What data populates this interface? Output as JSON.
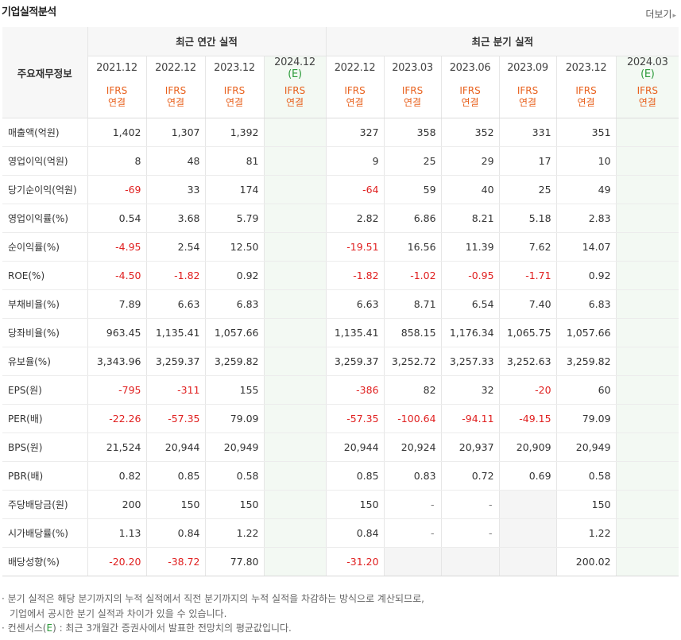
{
  "title": "기업실적분석",
  "more_label": "더보기",
  "more_arrow": "▸",
  "header": {
    "row_label": "주요재무정보",
    "annual_group": "최근 연간 실적",
    "quarter_group": "최근 분기 실적",
    "periods": [
      {
        "top": "2021.12",
        "bottom": ""
      },
      {
        "top": "2022.12",
        "bottom": ""
      },
      {
        "top": "2023.12",
        "bottom": ""
      },
      {
        "top": "2024.12",
        "bottom": "(E)"
      },
      {
        "top": "2022.12",
        "bottom": ""
      },
      {
        "top": "2023.03",
        "bottom": ""
      },
      {
        "top": "2023.06",
        "bottom": ""
      },
      {
        "top": "2023.09",
        "bottom": ""
      },
      {
        "top": "2023.12",
        "bottom": ""
      },
      {
        "top": "2024.03",
        "bottom": "(E)"
      }
    ],
    "basis_line1": "IFRS",
    "basis_line2": "연결"
  },
  "rows": [
    {
      "label": "매출액(억원)",
      "values": [
        "1,402",
        "1,307",
        "1,392",
        "",
        "327",
        "358",
        "352",
        "331",
        "351",
        ""
      ]
    },
    {
      "label": "영업이익(억원)",
      "values": [
        "8",
        "48",
        "81",
        "",
        "9",
        "25",
        "29",
        "17",
        "10",
        ""
      ]
    },
    {
      "label": "당기순이익(억원)",
      "values": [
        "-69",
        "33",
        "174",
        "",
        "-64",
        "59",
        "40",
        "25",
        "49",
        ""
      ]
    },
    {
      "label": "영업이익률(%)",
      "values": [
        "0.54",
        "3.68",
        "5.79",
        "",
        "2.82",
        "6.86",
        "8.21",
        "5.18",
        "2.83",
        ""
      ]
    },
    {
      "label": "순이익률(%)",
      "values": [
        "-4.95",
        "2.54",
        "12.50",
        "",
        "-19.51",
        "16.56",
        "11.39",
        "7.62",
        "14.07",
        ""
      ]
    },
    {
      "label": "ROE(%)",
      "values": [
        "-4.50",
        "-1.82",
        "0.92",
        "",
        "-1.82",
        "-1.02",
        "-0.95",
        "-1.71",
        "0.92",
        ""
      ]
    },
    {
      "label": "부채비율(%)",
      "values": [
        "7.89",
        "6.63",
        "6.83",
        "",
        "6.63",
        "8.71",
        "6.54",
        "7.40",
        "6.83",
        ""
      ]
    },
    {
      "label": "당좌비율(%)",
      "values": [
        "963.45",
        "1,135.41",
        "1,057.66",
        "",
        "1,135.41",
        "858.15",
        "1,176.34",
        "1,065.75",
        "1,057.66",
        ""
      ]
    },
    {
      "label": "유보율(%)",
      "values": [
        "3,343.96",
        "3,259.37",
        "3,259.82",
        "",
        "3,259.37",
        "3,252.72",
        "3,257.33",
        "3,252.63",
        "3,259.82",
        ""
      ]
    },
    {
      "label": "EPS(원)",
      "values": [
        "-795",
        "-311",
        "155",
        "",
        "-386",
        "82",
        "32",
        "-20",
        "60",
        ""
      ]
    },
    {
      "label": "PER(배)",
      "values": [
        "-22.26",
        "-57.35",
        "79.09",
        "",
        "-57.35",
        "-100.64",
        "-94.11",
        "-49.15",
        "79.09",
        ""
      ]
    },
    {
      "label": "BPS(원)",
      "values": [
        "21,524",
        "20,944",
        "20,949",
        "",
        "20,944",
        "20,924",
        "20,937",
        "20,909",
        "20,949",
        ""
      ]
    },
    {
      "label": "PBR(배)",
      "values": [
        "0.82",
        "0.85",
        "0.58",
        "",
        "0.85",
        "0.83",
        "0.72",
        "0.69",
        "0.58",
        ""
      ]
    },
    {
      "label": "주당배당금(원)",
      "values": [
        "200",
        "150",
        "150",
        "",
        "150",
        "-",
        "-",
        "",
        "150",
        ""
      ]
    },
    {
      "label": "시가배당률(%)",
      "values": [
        "1.13",
        "0.84",
        "1.22",
        "",
        "0.84",
        "-",
        "-",
        "",
        "1.22",
        ""
      ]
    },
    {
      "label": "배당성향(%)",
      "values": [
        "-20.20",
        "-38.72",
        "77.80",
        "",
        "-31.20",
        "",
        "",
        "",
        "200.02",
        ""
      ]
    }
  ],
  "notes": {
    "line1": "· 분기 실적은 해당 분기까지의 누적 실적에서 직전 분기까지의 누적 실적을 차감하는 방식으로 계산되므로,",
    "line2": "기업에서 공시한 분기 실적과 차이가 있을 수 있습니다.",
    "line3_pre": "· 컨센서스(",
    "line3_e": "E",
    "line3_post": ") : 최근 3개월간 증권사에서 발표한 전망치의 평균값입니다."
  }
}
